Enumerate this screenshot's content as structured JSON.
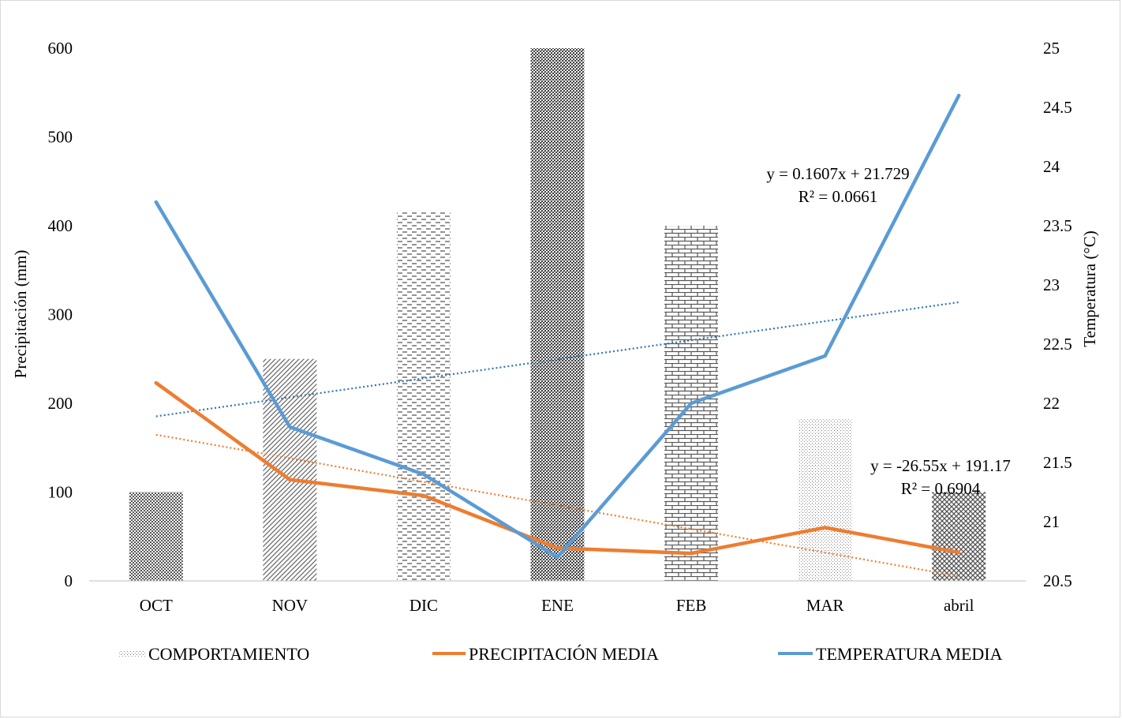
{
  "chart_data": {
    "type": "bar+line",
    "categories": [
      "OCT",
      "NOV",
      "DIC",
      "ENE",
      "FEB",
      "MAR",
      "abril"
    ],
    "series": [
      {
        "name": "COMPORTAMIENTO",
        "kind": "bar",
        "axis": "left",
        "values": [
          100,
          250,
          417,
          600,
          400,
          183,
          100
        ]
      },
      {
        "name": "PRECIPITACIÓN MEDIA",
        "kind": "line",
        "axis": "left",
        "color": "#ed7d31",
        "values": [
          223,
          114,
          96,
          37,
          31,
          60,
          32
        ]
      },
      {
        "name": "TEMPERATURA MEDIA",
        "kind": "line",
        "axis": "right",
        "color": "#5b9bd5",
        "values": [
          23.7,
          21.8,
          21.4,
          20.7,
          22.0,
          22.4,
          24.6
        ]
      }
    ],
    "trendlines": [
      {
        "series": "TEMPERATURA MEDIA",
        "axis": "right",
        "color": "#2e75b6",
        "slope": 0.1607,
        "intercept": 21.729,
        "equation": "y = 0.1607x + 21.729",
        "r2": "R² = 0.0661"
      },
      {
        "series": "PRECIPITACIÓN MEDIA",
        "axis": "left",
        "color": "#ed7d31",
        "slope": -26.55,
        "intercept": 191.17,
        "equation": "y = -26.55x + 191.17",
        "r2": "R² = 0.6904"
      }
    ],
    "y_left": {
      "label": "Precipitación (mm)",
      "ylim": [
        0,
        600
      ],
      "ticks": [
        "0",
        "100",
        "200",
        "300",
        "400",
        "500",
        "600"
      ]
    },
    "y_right": {
      "label": "Temperatura (°C)",
      "ylim": [
        20.5,
        25
      ],
      "ticks": [
        "20.5",
        "21",
        "21.5",
        "22",
        "22.5",
        "23",
        "23.5",
        "24",
        "24.5",
        "25"
      ]
    },
    "legend": {
      "position": "bottom",
      "items": [
        "COMPORTAMIENTO",
        "PRECIPITACIÓN MEDIA",
        "TEMPERATURA MEDIA"
      ]
    },
    "grid": false
  }
}
